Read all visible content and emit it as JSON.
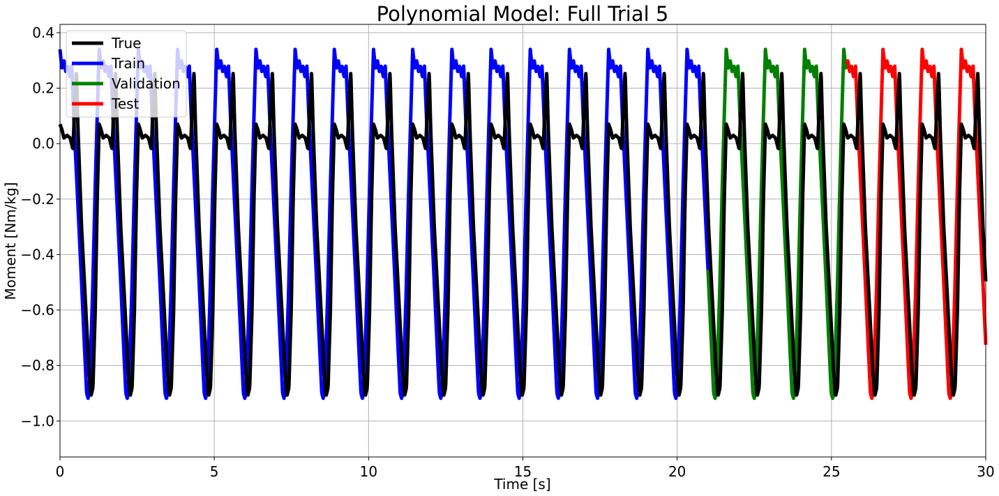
{
  "chart_data": {
    "type": "line",
    "title": "Polynomial Model: Full Trial 5",
    "xlabel": "Time [s]",
    "ylabel": "Moment [Nm/kg]",
    "xlim": [
      0,
      30
    ],
    "ylim": [
      -1.13,
      0.43
    ],
    "grid": true,
    "legend_position": "top-left",
    "x_ticks": [
      0,
      5,
      10,
      15,
      20,
      25,
      30
    ],
    "x_tick_labels": [
      "0",
      "5",
      "10",
      "15",
      "20",
      "25",
      "30"
    ],
    "y_ticks": [
      -1.0,
      -0.8,
      -0.6,
      -0.4,
      -0.2,
      0.0,
      0.2,
      0.4
    ],
    "y_tick_labels": [
      "−1.0",
      "−0.8",
      "−0.6",
      "−0.4",
      "−0.2",
      "0.0",
      "0.2",
      "0.4"
    ],
    "cycle_period": 1.27,
    "series": [
      {
        "name": "True",
        "color": "#000000",
        "x_range": [
          0,
          30
        ],
        "cycle_shape": [
          [
            0.0,
            0.07
          ],
          [
            0.05,
            0.05
          ],
          [
            0.1,
            0.02
          ],
          [
            0.18,
            0.03
          ],
          [
            0.26,
            0.02
          ],
          [
            0.33,
            -0.02
          ],
          [
            0.38,
            0.15
          ],
          [
            0.42,
            0.26
          ],
          [
            0.46,
            0.05
          ],
          [
            0.55,
            -0.3
          ],
          [
            0.66,
            -0.6
          ],
          [
            0.74,
            -0.82
          ],
          [
            0.79,
            -0.91
          ],
          [
            0.84,
            -0.88
          ],
          [
            0.9,
            -0.6
          ],
          [
            0.95,
            -0.2
          ],
          [
            1.0,
            0.07
          ]
        ]
      },
      {
        "name": "Train",
        "color": "#0000ff",
        "x_range": [
          0,
          21.0
        ],
        "cycle_shape": [
          [
            0.0,
            0.34
          ],
          [
            0.05,
            0.27
          ],
          [
            0.1,
            0.3
          ],
          [
            0.15,
            0.26
          ],
          [
            0.2,
            0.28
          ],
          [
            0.25,
            0.24
          ],
          [
            0.3,
            0.28
          ],
          [
            0.35,
            0.1
          ],
          [
            0.45,
            -0.2
          ],
          [
            0.55,
            -0.5
          ],
          [
            0.63,
            -0.75
          ],
          [
            0.68,
            -0.9
          ],
          [
            0.72,
            -0.92
          ],
          [
            0.76,
            -0.85
          ],
          [
            0.83,
            -0.55
          ],
          [
            0.9,
            -0.15
          ],
          [
            0.96,
            0.15
          ],
          [
            1.0,
            0.34
          ]
        ]
      },
      {
        "name": "Validation",
        "color": "#008000",
        "x_range": [
          21.0,
          25.5
        ],
        "cycle_shape": [
          [
            0.0,
            0.34
          ],
          [
            0.05,
            0.27
          ],
          [
            0.1,
            0.3
          ],
          [
            0.15,
            0.26
          ],
          [
            0.2,
            0.28
          ],
          [
            0.25,
            0.24
          ],
          [
            0.3,
            0.28
          ],
          [
            0.35,
            0.1
          ],
          [
            0.45,
            -0.2
          ],
          [
            0.55,
            -0.5
          ],
          [
            0.63,
            -0.75
          ],
          [
            0.68,
            -0.9
          ],
          [
            0.72,
            -0.92
          ],
          [
            0.76,
            -0.85
          ],
          [
            0.83,
            -0.55
          ],
          [
            0.9,
            -0.15
          ],
          [
            0.96,
            0.15
          ],
          [
            1.0,
            0.34
          ]
        ]
      },
      {
        "name": "Test",
        "color": "#ff0000",
        "x_range": [
          25.5,
          30
        ],
        "cycle_shape": [
          [
            0.0,
            0.34
          ],
          [
            0.05,
            0.27
          ],
          [
            0.1,
            0.3
          ],
          [
            0.15,
            0.26
          ],
          [
            0.2,
            0.28
          ],
          [
            0.25,
            0.24
          ],
          [
            0.3,
            0.28
          ],
          [
            0.35,
            0.1
          ],
          [
            0.45,
            -0.2
          ],
          [
            0.55,
            -0.5
          ],
          [
            0.63,
            -0.75
          ],
          [
            0.68,
            -0.9
          ],
          [
            0.72,
            -0.92
          ],
          [
            0.76,
            -0.85
          ],
          [
            0.83,
            -0.55
          ],
          [
            0.9,
            -0.15
          ],
          [
            0.96,
            0.15
          ],
          [
            1.0,
            0.34
          ]
        ]
      }
    ]
  }
}
